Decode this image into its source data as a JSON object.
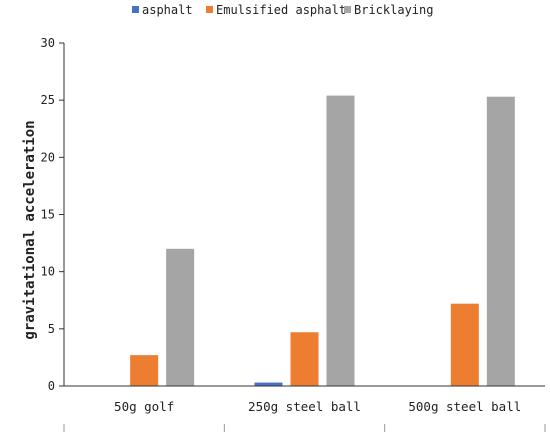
{
  "chart_data": {
    "type": "bar",
    "categories": [
      "50g golf",
      "250g steel ball",
      "500g steel ball"
    ],
    "series": [
      {
        "name": "asphalt",
        "color": "#4472C4",
        "values": [
          0,
          0.3,
          0
        ]
      },
      {
        "name": "Emulsified asphalt",
        "color": "#ED7D31",
        "values": [
          2.7,
          4.7,
          7.2
        ]
      },
      {
        "name": "Bricklaying",
        "color": "#A5A5A5",
        "values": [
          12.0,
          25.4,
          25.3
        ]
      }
    ],
    "title": "",
    "xlabel": "",
    "ylabel": "gravitational acceleration",
    "ylim": [
      0,
      30
    ],
    "yticks": [
      0,
      5,
      10,
      15,
      20,
      25,
      30
    ],
    "grid": false,
    "legend_position": "top"
  }
}
